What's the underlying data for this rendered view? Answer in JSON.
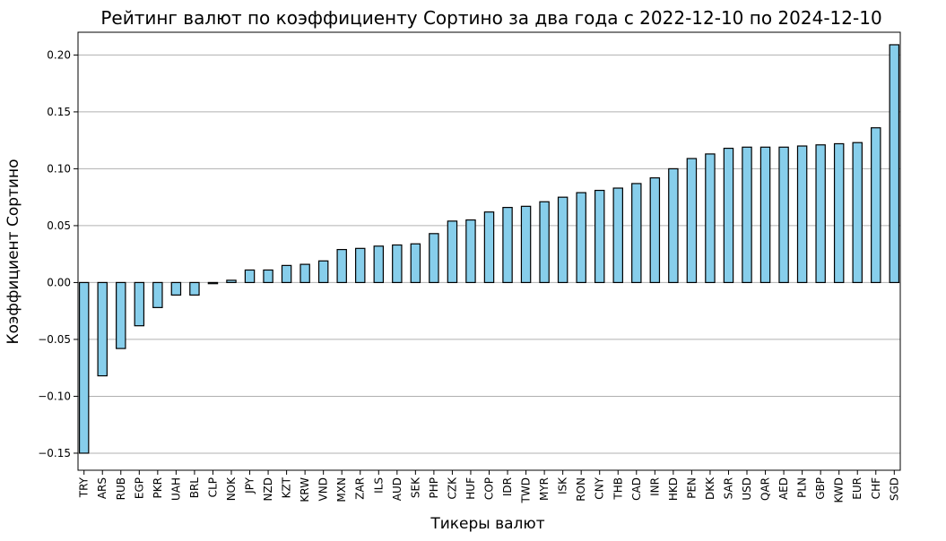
{
  "chart_data": {
    "type": "bar",
    "title": "Рейтинг валют по коэффициенту Сортино за два года с 2022-12-10 по 2024-12-10",
    "xlabel": "Тикеры валют",
    "ylabel": "Коэффициент Сортино",
    "ylim": [
      -0.165,
      0.22
    ],
    "y_ticks": [
      -0.15,
      -0.1,
      -0.05,
      0.0,
      0.05,
      0.1,
      0.15,
      0.2
    ],
    "y_tick_labels": [
      "−0.15",
      "−0.10",
      "−0.05",
      "0.00",
      "0.05",
      "0.10",
      "0.15",
      "0.20"
    ],
    "grid": "horizontal",
    "bar_color": "#87CEEB",
    "edge_color": "#000000",
    "categories": [
      "TRY",
      "ARS",
      "RUB",
      "EGP",
      "PKR",
      "UAH",
      "BRL",
      "CLP",
      "NOK",
      "JPY",
      "NZD",
      "KZT",
      "KRW",
      "VND",
      "MXN",
      "ZAR",
      "ILS",
      "AUD",
      "SEK",
      "PHP",
      "CZK",
      "HUF",
      "COP",
      "IDR",
      "TWD",
      "MYR",
      "ISK",
      "RON",
      "CNY",
      "THB",
      "CAD",
      "INR",
      "HKD",
      "PEN",
      "DKK",
      "SAR",
      "USD",
      "QAR",
      "AED",
      "PLN",
      "GBP",
      "KWD",
      "EUR",
      "CHF",
      "SGD"
    ],
    "values": [
      -0.15,
      -0.082,
      -0.058,
      -0.038,
      -0.022,
      -0.011,
      -0.011,
      -0.001,
      0.002,
      0.011,
      0.011,
      0.015,
      0.016,
      0.019,
      0.029,
      0.03,
      0.032,
      0.033,
      0.034,
      0.043,
      0.054,
      0.055,
      0.062,
      0.066,
      0.067,
      0.071,
      0.075,
      0.079,
      0.081,
      0.083,
      0.087,
      0.092,
      0.1,
      0.109,
      0.113,
      0.118,
      0.119,
      0.119,
      0.119,
      0.12,
      0.121,
      0.122,
      0.123,
      0.136,
      0.209
    ]
  }
}
